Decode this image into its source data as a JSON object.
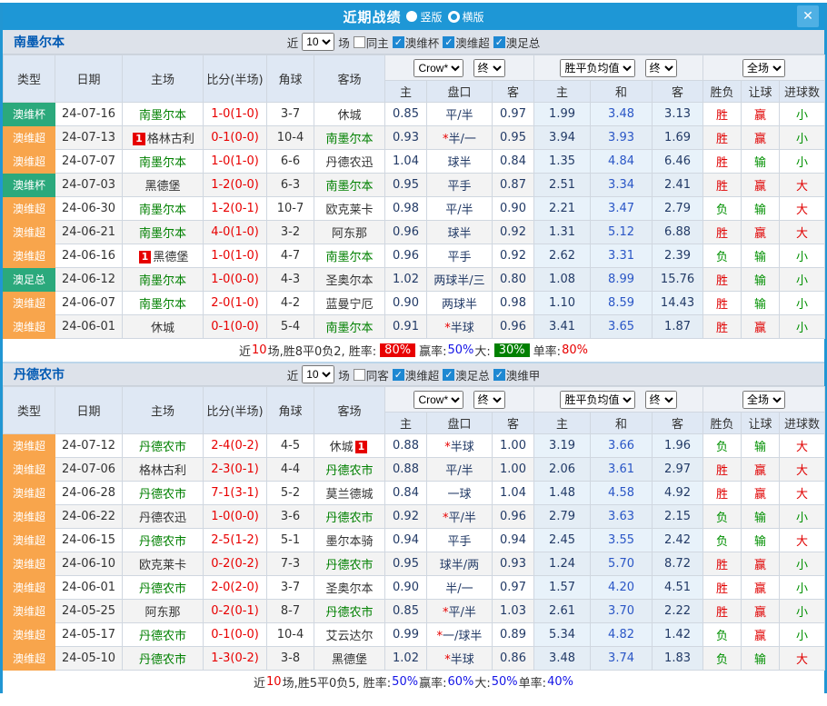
{
  "dialog": {
    "title": "近期战绩",
    "view_options": [
      {
        "label": "竖版",
        "selected": true
      },
      {
        "label": "横版",
        "selected": false
      }
    ],
    "close_label": "✕"
  },
  "table_headers": {
    "main": [
      "类型",
      "日期",
      "主场",
      "比分(半场)",
      "角球",
      "客场"
    ],
    "sub": [
      "主",
      "盘口",
      "客",
      "主",
      "和",
      "客",
      "胜负",
      "让球",
      "进球数"
    ]
  },
  "sections": [
    {
      "team": "南墨尔本",
      "filter": {
        "near_label": "近",
        "count": "10",
        "games_label": "场",
        "same_label": "同主",
        "same_checked": false,
        "leagues": [
          {
            "label": "澳维杯",
            "checked": true
          },
          {
            "label": "澳维超",
            "checked": true
          },
          {
            "label": "澳足总",
            "checked": true
          }
        ]
      },
      "dropdowns": {
        "company": "Crow*",
        "company_state": "终",
        "avg": "胜平负均值",
        "avg_state": "终",
        "scope": "全场"
      },
      "rows": [
        {
          "type": "澳维杯",
          "type_color": "green",
          "date": "24-07-16",
          "home": {
            "name": "南墨尔本",
            "green": true
          },
          "score": "1-0",
          "half": "(1-0)",
          "corner": "3-7",
          "away": {
            "name": "休城"
          },
          "odds_home": "0.85",
          "handicap": "平/半",
          "odds_away": "0.97",
          "avg_home": "1.99",
          "avg_draw": "3.48",
          "avg_away": "3.13",
          "result": "胜",
          "handicap_result": "赢",
          "goals": "小"
        },
        {
          "type": "澳维超",
          "type_color": "orange",
          "date": "24-07-13",
          "home": {
            "name": "格林古利",
            "badge": "1",
            "badge_pos": "left"
          },
          "score": "0-1",
          "half": "(0-0)",
          "corner": "10-4",
          "away": {
            "name": "南墨尔本",
            "green": true
          },
          "odds_home": "0.93",
          "handicap": "*半/一",
          "odds_away": "0.95",
          "avg_home": "3.94",
          "avg_draw": "3.93",
          "avg_away": "1.69",
          "result": "胜",
          "handicap_result": "赢",
          "goals": "小"
        },
        {
          "type": "澳维超",
          "type_color": "orange",
          "date": "24-07-07",
          "home": {
            "name": "南墨尔本",
            "green": true
          },
          "score": "1-0",
          "half": "(1-0)",
          "corner": "6-6",
          "away": {
            "name": "丹德农迅"
          },
          "odds_home": "1.04",
          "handicap": "球半",
          "odds_away": "0.84",
          "avg_home": "1.35",
          "avg_draw": "4.84",
          "avg_away": "6.46",
          "result": "胜",
          "handicap_result": "输",
          "goals": "小"
        },
        {
          "type": "澳维杯",
          "type_color": "green",
          "date": "24-07-03",
          "home": {
            "name": "黑德堡"
          },
          "score": "1-2",
          "half": "(0-0)",
          "corner": "6-3",
          "away": {
            "name": "南墨尔本",
            "green": true
          },
          "odds_home": "0.95",
          "handicap": "平手",
          "odds_away": "0.87",
          "avg_home": "2.51",
          "avg_draw": "3.34",
          "avg_away": "2.41",
          "result": "胜",
          "handicap_result": "赢",
          "goals": "大"
        },
        {
          "type": "澳维超",
          "type_color": "orange",
          "date": "24-06-30",
          "home": {
            "name": "南墨尔本",
            "green": true
          },
          "score": "1-2",
          "half": "(0-1)",
          "corner": "10-7",
          "away": {
            "name": "欧克莱卡"
          },
          "odds_home": "0.98",
          "handicap": "平/半",
          "odds_away": "0.90",
          "avg_home": "2.21",
          "avg_draw": "3.47",
          "avg_away": "2.79",
          "result": "负",
          "handicap_result": "输",
          "goals": "大"
        },
        {
          "type": "澳维超",
          "type_color": "orange",
          "date": "24-06-21",
          "home": {
            "name": "南墨尔本",
            "green": true
          },
          "score": "4-0",
          "half": "(1-0)",
          "corner": "3-2",
          "away": {
            "name": "阿东那"
          },
          "odds_home": "0.96",
          "handicap": "球半",
          "odds_away": "0.92",
          "avg_home": "1.31",
          "avg_draw": "5.12",
          "avg_away": "6.88",
          "result": "胜",
          "handicap_result": "赢",
          "goals": "大"
        },
        {
          "type": "澳维超",
          "type_color": "orange",
          "date": "24-06-16",
          "home": {
            "name": "黑德堡",
            "badge": "1",
            "badge_pos": "left"
          },
          "score": "1-0",
          "half": "(1-0)",
          "corner": "4-7",
          "away": {
            "name": "南墨尔本",
            "green": true
          },
          "odds_home": "0.96",
          "handicap": "平手",
          "odds_away": "0.92",
          "avg_home": "2.62",
          "avg_draw": "3.31",
          "avg_away": "2.39",
          "result": "负",
          "handicap_result": "输",
          "goals": "小"
        },
        {
          "type": "澳足总",
          "type_color": "green",
          "date": "24-06-12",
          "home": {
            "name": "南墨尔本",
            "green": true
          },
          "score": "1-0",
          "half": "(0-0)",
          "corner": "4-3",
          "away": {
            "name": "圣奥尔本"
          },
          "odds_home": "1.02",
          "handicap": "两球半/三",
          "odds_away": "0.80",
          "avg_home": "1.08",
          "avg_draw": "8.99",
          "avg_away": "15.76",
          "result": "胜",
          "handicap_result": "输",
          "goals": "小"
        },
        {
          "type": "澳维超",
          "type_color": "orange",
          "date": "24-06-07",
          "home": {
            "name": "南墨尔本",
            "green": true
          },
          "score": "2-0",
          "half": "(1-0)",
          "corner": "4-2",
          "away": {
            "name": "蓝曼宁厄"
          },
          "odds_home": "0.90",
          "handicap": "两球半",
          "odds_away": "0.98",
          "avg_home": "1.10",
          "avg_draw": "8.59",
          "avg_away": "14.43",
          "result": "胜",
          "handicap_result": "输",
          "goals": "小"
        },
        {
          "type": "澳维超",
          "type_color": "orange",
          "date": "24-06-01",
          "home": {
            "name": "休城"
          },
          "score": "0-1",
          "half": "(0-0)",
          "corner": "5-4",
          "away": {
            "name": "南墨尔本",
            "green": true
          },
          "odds_home": "0.91",
          "handicap": "*半球",
          "odds_away": "0.96",
          "avg_home": "3.41",
          "avg_draw": "3.65",
          "avg_away": "1.87",
          "result": "胜",
          "handicap_result": "赢",
          "goals": "小"
        }
      ],
      "summary_parts": [
        {
          "t": "近"
        },
        {
          "t": "10",
          "c": "red"
        },
        {
          "t": "场,胜8平0负2, 胜率:"
        },
        {
          "t": "80%",
          "c": "bg-red"
        },
        {
          "t": " 赢率:"
        },
        {
          "t": "50%",
          "c": "blue"
        },
        {
          "t": " 大:"
        },
        {
          "t": "30%",
          "c": "bg-green"
        },
        {
          "t": " 单率:"
        },
        {
          "t": "80%",
          "c": "red"
        }
      ]
    },
    {
      "team": "丹德农市",
      "filter": {
        "near_label": "近",
        "count": "10",
        "games_label": "场",
        "same_label": "同客",
        "same_checked": false,
        "leagues": [
          {
            "label": "澳维超",
            "checked": true
          },
          {
            "label": "澳足总",
            "checked": true
          },
          {
            "label": "澳维甲",
            "checked": true
          }
        ]
      },
      "dropdowns": {
        "company": "Crow*",
        "company_state": "终",
        "avg": "胜平负均值",
        "avg_state": "终",
        "scope": "全场"
      },
      "rows": [
        {
          "type": "澳维超",
          "type_color": "orange",
          "date": "24-07-12",
          "home": {
            "name": "丹德农市",
            "green": true
          },
          "score": "2-4",
          "half": "(0-2)",
          "corner": "4-5",
          "away": {
            "name": "休城",
            "badge": "1",
            "badge_pos": "right"
          },
          "odds_home": "0.88",
          "handicap": "*半球",
          "odds_away": "1.00",
          "avg_home": "3.19",
          "avg_draw": "3.66",
          "avg_away": "1.96",
          "result": "负",
          "handicap_result": "输",
          "goals": "大"
        },
        {
          "type": "澳维超",
          "type_color": "orange",
          "date": "24-07-06",
          "home": {
            "name": "格林古利"
          },
          "score": "2-3",
          "half": "(0-1)",
          "corner": "4-4",
          "away": {
            "name": "丹德农市",
            "green": true
          },
          "odds_home": "0.88",
          "handicap": "平/半",
          "odds_away": "1.00",
          "avg_home": "2.06",
          "avg_draw": "3.61",
          "avg_away": "2.97",
          "result": "胜",
          "handicap_result": "赢",
          "goals": "大"
        },
        {
          "type": "澳维超",
          "type_color": "orange",
          "date": "24-06-28",
          "home": {
            "name": "丹德农市",
            "green": true
          },
          "score": "7-1",
          "half": "(3-1)",
          "corner": "5-2",
          "away": {
            "name": "莫兰德城"
          },
          "odds_home": "0.84",
          "handicap": "一球",
          "odds_away": "1.04",
          "avg_home": "1.48",
          "avg_draw": "4.58",
          "avg_away": "4.92",
          "result": "胜",
          "handicap_result": "赢",
          "goals": "大"
        },
        {
          "type": "澳维超",
          "type_color": "orange",
          "date": "24-06-22",
          "home": {
            "name": "丹德农迅"
          },
          "score": "1-0",
          "half": "(0-0)",
          "corner": "3-6",
          "away": {
            "name": "丹德农市",
            "green": true
          },
          "odds_home": "0.92",
          "handicap": "*平/半",
          "odds_away": "0.96",
          "avg_home": "2.79",
          "avg_draw": "3.63",
          "avg_away": "2.15",
          "result": "负",
          "handicap_result": "输",
          "goals": "小"
        },
        {
          "type": "澳维超",
          "type_color": "orange",
          "date": "24-06-15",
          "home": {
            "name": "丹德农市",
            "green": true
          },
          "score": "2-5",
          "half": "(1-2)",
          "corner": "5-1",
          "away": {
            "name": "墨尔本骑"
          },
          "odds_home": "0.94",
          "handicap": "平手",
          "odds_away": "0.94",
          "avg_home": "2.45",
          "avg_draw": "3.55",
          "avg_away": "2.42",
          "result": "负",
          "handicap_result": "输",
          "goals": "大"
        },
        {
          "type": "澳维超",
          "type_color": "orange",
          "date": "24-06-10",
          "home": {
            "name": "欧克莱卡"
          },
          "score": "0-2",
          "half": "(0-2)",
          "corner": "7-3",
          "away": {
            "name": "丹德农市",
            "green": true
          },
          "odds_home": "0.95",
          "handicap": "球半/两",
          "odds_away": "0.93",
          "avg_home": "1.24",
          "avg_draw": "5.70",
          "avg_away": "8.72",
          "result": "胜",
          "handicap_result": "赢",
          "goals": "小"
        },
        {
          "type": "澳维超",
          "type_color": "orange",
          "date": "24-06-01",
          "home": {
            "name": "丹德农市",
            "green": true
          },
          "score": "2-0",
          "half": "(2-0)",
          "corner": "3-7",
          "away": {
            "name": "圣奥尔本"
          },
          "odds_home": "0.90",
          "handicap": "半/一",
          "odds_away": "0.97",
          "avg_home": "1.57",
          "avg_draw": "4.20",
          "avg_away": "4.51",
          "result": "胜",
          "handicap_result": "赢",
          "goals": "小"
        },
        {
          "type": "澳维超",
          "type_color": "orange",
          "date": "24-05-25",
          "home": {
            "name": "阿东那"
          },
          "score": "0-2",
          "half": "(0-1)",
          "corner": "8-7",
          "away": {
            "name": "丹德农市",
            "green": true
          },
          "odds_home": "0.85",
          "handicap": "*平/半",
          "odds_away": "1.03",
          "avg_home": "2.61",
          "avg_draw": "3.70",
          "avg_away": "2.22",
          "result": "胜",
          "handicap_result": "赢",
          "goals": "小"
        },
        {
          "type": "澳维超",
          "type_color": "orange",
          "date": "24-05-17",
          "home": {
            "name": "丹德农市",
            "green": true
          },
          "score": "0-1",
          "half": "(0-0)",
          "corner": "10-4",
          "away": {
            "name": "艾云达尔"
          },
          "odds_home": "0.99",
          "handicap": "*一/球半",
          "odds_away": "0.89",
          "avg_home": "5.34",
          "avg_draw": "4.82",
          "avg_away": "1.42",
          "result": "负",
          "handicap_result": "赢",
          "goals": "小"
        },
        {
          "type": "澳维超",
          "type_color": "orange",
          "date": "24-05-10",
          "home": {
            "name": "丹德农市",
            "green": true
          },
          "score": "1-3",
          "half": "(0-2)",
          "corner": "3-8",
          "away": {
            "name": "黑德堡"
          },
          "odds_home": "1.02",
          "handicap": "*半球",
          "odds_away": "0.86",
          "avg_home": "3.48",
          "avg_draw": "3.74",
          "avg_away": "1.83",
          "result": "负",
          "handicap_result": "输",
          "goals": "大"
        }
      ],
      "summary_parts": [
        {
          "t": "近"
        },
        {
          "t": "10",
          "c": "red"
        },
        {
          "t": "场,胜5平0负5, 胜率:"
        },
        {
          "t": "50%",
          "c": "blue"
        },
        {
          "t": " 赢率:"
        },
        {
          "t": "60%",
          "c": "blue"
        },
        {
          "t": " 大:"
        },
        {
          "t": "50%",
          "c": "blue"
        },
        {
          "t": " 单率:"
        },
        {
          "t": "40%",
          "c": "blue"
        }
      ]
    }
  ]
}
